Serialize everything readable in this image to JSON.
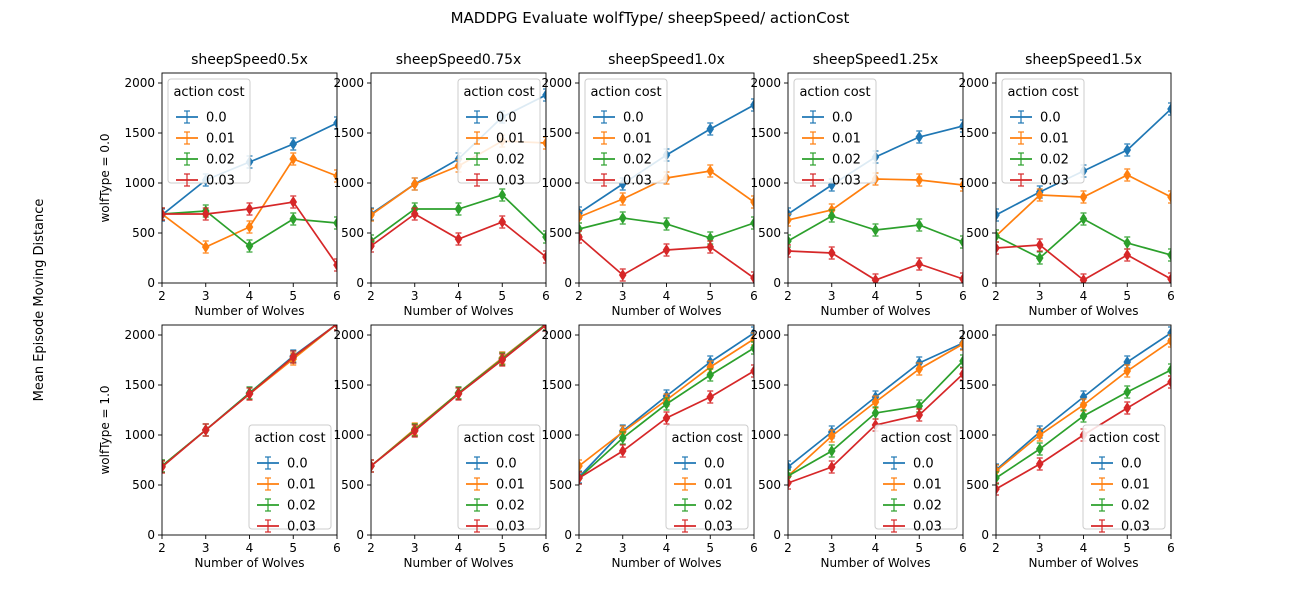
{
  "figure": {
    "suptitle": "MADDPG Evaluate wolfType/ sheepSpeed/ actionCost",
    "ylabel": "Mean Episode Moving Distance",
    "row_labels": [
      "wolfType = 0.0",
      "wolfType = 1.0"
    ],
    "legend_title": "action cost",
    "series_names": [
      "0.0",
      "0.01",
      "0.02",
      "0.03"
    ],
    "series_colors": [
      "#1f77b4",
      "#ff7f0e",
      "#2ca02c",
      "#d62728"
    ]
  },
  "chart_data": [
    {
      "type": "line",
      "title": "sheepSpeed0.5x",
      "xlabel": "Number of Wolves",
      "ylabel": "wolfType = 0.0",
      "x": [
        2,
        3,
        4,
        5,
        6
      ],
      "xlim": [
        2,
        6
      ],
      "ylim": [
        0,
        2100
      ],
      "legend": "upper left",
      "series": [
        {
          "name": "0.0",
          "values": [
            680,
            1030,
            1210,
            1390,
            1600
          ]
        },
        {
          "name": "0.01",
          "values": [
            690,
            360,
            560,
            1240,
            1070
          ]
        },
        {
          "name": "0.02",
          "values": [
            690,
            720,
            370,
            640,
            600
          ]
        },
        {
          "name": "0.03",
          "values": [
            690,
            690,
            740,
            810,
            180
          ]
        }
      ]
    },
    {
      "type": "line",
      "title": "sheepSpeed0.75x",
      "xlabel": "Number of Wolves",
      "ylabel": "",
      "x": [
        2,
        3,
        4,
        5,
        6
      ],
      "xlim": [
        2,
        6
      ],
      "ylim": [
        0,
        2100
      ],
      "legend": "upper right",
      "series": [
        {
          "name": "0.0",
          "values": [
            690,
            990,
            1240,
            1660,
            1880
          ]
        },
        {
          "name": "0.01",
          "values": [
            680,
            990,
            1170,
            1420,
            1400
          ]
        },
        {
          "name": "0.02",
          "values": [
            420,
            740,
            740,
            880,
            460
          ]
        },
        {
          "name": "0.03",
          "values": [
            370,
            690,
            440,
            610,
            260
          ]
        }
      ]
    },
    {
      "type": "line",
      "title": "sheepSpeed1.0x",
      "xlabel": "Number of Wolves",
      "ylabel": "",
      "x": [
        2,
        3,
        4,
        5,
        6
      ],
      "xlim": [
        2,
        6
      ],
      "ylim": [
        0,
        2100
      ],
      "legend": "upper left",
      "series": [
        {
          "name": "0.0",
          "values": [
            700,
            990,
            1280,
            1540,
            1780
          ]
        },
        {
          "name": "0.01",
          "values": [
            660,
            840,
            1050,
            1120,
            810
          ]
        },
        {
          "name": "0.02",
          "values": [
            540,
            650,
            590,
            450,
            600
          ]
        },
        {
          "name": "0.03",
          "values": [
            460,
            80,
            330,
            360,
            50
          ]
        }
      ]
    },
    {
      "type": "line",
      "title": "sheepSpeed1.25x",
      "xlabel": "Number of Wolves",
      "ylabel": "",
      "x": [
        2,
        3,
        4,
        5,
        6
      ],
      "xlim": [
        2,
        6
      ],
      "ylim": [
        0,
        2100
      ],
      "legend": "upper left",
      "series": [
        {
          "name": "0.0",
          "values": [
            690,
            980,
            1260,
            1460,
            1570
          ]
        },
        {
          "name": "0.01",
          "values": [
            630,
            730,
            1040,
            1030,
            980
          ]
        },
        {
          "name": "0.02",
          "values": [
            420,
            670,
            530,
            580,
            410
          ]
        },
        {
          "name": "0.03",
          "values": [
            320,
            300,
            30,
            190,
            40
          ]
        }
      ]
    },
    {
      "type": "line",
      "title": "sheepSpeed1.5x",
      "xlabel": "Number of Wolves",
      "ylabel": "",
      "x": [
        2,
        3,
        4,
        5,
        6
      ],
      "xlim": [
        2,
        6
      ],
      "ylim": [
        0,
        2100
      ],
      "legend": "upper left",
      "series": [
        {
          "name": "0.0",
          "values": [
            680,
            910,
            1120,
            1330,
            1740
          ]
        },
        {
          "name": "0.01",
          "values": [
            470,
            880,
            860,
            1080,
            860
          ]
        },
        {
          "name": "0.02",
          "values": [
            470,
            250,
            640,
            400,
            280
          ]
        },
        {
          "name": "0.03",
          "values": [
            350,
            380,
            30,
            280,
            40
          ]
        }
      ]
    },
    {
      "type": "line",
      "title": "",
      "xlabel": "Number of Wolves",
      "ylabel": "wolfType = 1.0",
      "x": [
        2,
        3,
        4,
        5,
        6
      ],
      "xlim": [
        2,
        6
      ],
      "ylim": [
        0,
        2100
      ],
      "legend": "lower right",
      "series": [
        {
          "name": "0.0",
          "values": [
            690,
            1050,
            1420,
            1790,
            2110
          ]
        },
        {
          "name": "0.01",
          "values": [
            690,
            1050,
            1410,
            1760,
            2110
          ]
        },
        {
          "name": "0.02",
          "values": [
            690,
            1050,
            1420,
            1780,
            2110
          ]
        },
        {
          "name": "0.03",
          "values": [
            680,
            1050,
            1410,
            1780,
            2110
          ]
        }
      ]
    },
    {
      "type": "line",
      "title": "",
      "xlabel": "Number of Wolves",
      "ylabel": "",
      "x": [
        2,
        3,
        4,
        5,
        6
      ],
      "xlim": [
        2,
        6
      ],
      "ylim": [
        0,
        2100
      ],
      "legend": "lower right",
      "series": [
        {
          "name": "0.0",
          "values": [
            690,
            1050,
            1420,
            1770,
            2110
          ]
        },
        {
          "name": "0.01",
          "values": [
            690,
            1060,
            1420,
            1770,
            2110
          ]
        },
        {
          "name": "0.02",
          "values": [
            690,
            1050,
            1420,
            1760,
            2110
          ]
        },
        {
          "name": "0.03",
          "values": [
            690,
            1040,
            1410,
            1750,
            2100
          ]
        }
      ]
    },
    {
      "type": "line",
      "title": "",
      "xlabel": "Number of Wolves",
      "ylabel": "",
      "x": [
        2,
        3,
        4,
        5,
        6
      ],
      "xlim": [
        2,
        6
      ],
      "ylim": [
        0,
        2100
      ],
      "legend": "lower right",
      "series": [
        {
          "name": "0.0",
          "values": [
            580,
            1040,
            1390,
            1730,
            2020
          ]
        },
        {
          "name": "0.01",
          "values": [
            690,
            1030,
            1350,
            1680,
            1960
          ]
        },
        {
          "name": "0.02",
          "values": [
            570,
            970,
            1310,
            1600,
            1870
          ]
        },
        {
          "name": "0.03",
          "values": [
            570,
            840,
            1170,
            1380,
            1640
          ]
        }
      ]
    },
    {
      "type": "line",
      "title": "",
      "xlabel": "Number of Wolves",
      "ylabel": "",
      "x": [
        2,
        3,
        4,
        5,
        6
      ],
      "xlim": [
        2,
        6
      ],
      "ylim": [
        0,
        2100
      ],
      "legend": "lower right",
      "series": [
        {
          "name": "0.0",
          "values": [
            680,
            1030,
            1380,
            1720,
            1920
          ]
        },
        {
          "name": "0.01",
          "values": [
            590,
            990,
            1330,
            1660,
            1910
          ]
        },
        {
          "name": "0.02",
          "values": [
            590,
            840,
            1220,
            1290,
            1740
          ]
        },
        {
          "name": "0.03",
          "values": [
            520,
            680,
            1100,
            1200,
            1610
          ]
        }
      ]
    },
    {
      "type": "line",
      "title": "",
      "xlabel": "Number of Wolves",
      "ylabel": "",
      "x": [
        2,
        3,
        4,
        5,
        6
      ],
      "xlim": [
        2,
        6
      ],
      "ylim": [
        0,
        2100
      ],
      "legend": "lower right",
      "series": [
        {
          "name": "0.0",
          "values": [
            650,
            1030,
            1380,
            1730,
            2020
          ]
        },
        {
          "name": "0.01",
          "values": [
            640,
            1000,
            1300,
            1640,
            1940
          ]
        },
        {
          "name": "0.02",
          "values": [
            570,
            860,
            1190,
            1430,
            1650
          ]
        },
        {
          "name": "0.03",
          "values": [
            460,
            710,
            1000,
            1270,
            1530
          ]
        }
      ]
    }
  ]
}
